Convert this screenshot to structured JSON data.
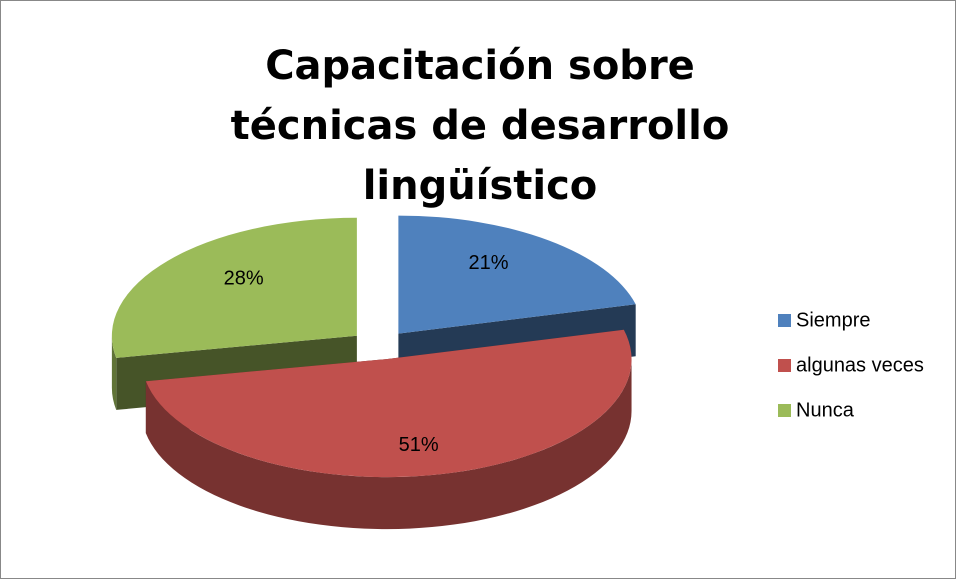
{
  "chart_data": {
    "type": "pie3d",
    "title": "Capacitación sobre técnicas de desarrollo lingüístico",
    "categories": [
      "Siempre",
      "algunas veces",
      "Nunca"
    ],
    "values": [
      21,
      51,
      28
    ],
    "value_labels": [
      "21%",
      "51%",
      "28%"
    ],
    "colors": [
      "#4f81bd",
      "#c0504d",
      "#9bbb59"
    ],
    "legend": "right"
  }
}
